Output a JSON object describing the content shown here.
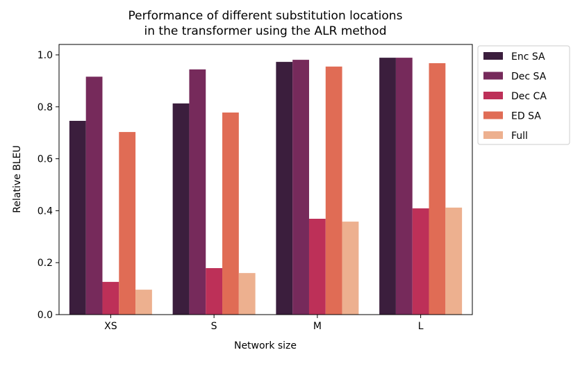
{
  "chart_data": {
    "type": "bar",
    "title": "Performance of different substitution locations\nin the transformer using the ALR method",
    "title_lines": [
      "Performance of different substitution locations",
      "in the transformer using the ALR method"
    ],
    "xlabel": "Network size",
    "ylabel": "Relative BLEU",
    "ylim": [
      0,
      1.05
    ],
    "yticks": [
      "0.0",
      "0.2",
      "0.4",
      "0.6",
      "0.8",
      "1.0"
    ],
    "categories": [
      "XS",
      "S",
      "M",
      "L"
    ],
    "legend_position": "outside-top-right",
    "series": [
      {
        "name": "Enc SA",
        "color": "#3b1e3d",
        "values": [
          0.746,
          0.813,
          0.973,
          0.989
        ]
      },
      {
        "name": "Dec SA",
        "color": "#762a5b",
        "values": [
          0.916,
          0.944,
          0.981,
          0.989
        ]
      },
      {
        "name": "Dec CA",
        "color": "#bd3058",
        "values": [
          0.126,
          0.179,
          0.369,
          0.409
        ]
      },
      {
        "name": "ED SA",
        "color": "#e06c55",
        "values": [
          0.703,
          0.778,
          0.955,
          0.968
        ]
      },
      {
        "name": "Full",
        "color": "#edb08f",
        "values": [
          0.096,
          0.16,
          0.358,
          0.412
        ]
      }
    ]
  }
}
